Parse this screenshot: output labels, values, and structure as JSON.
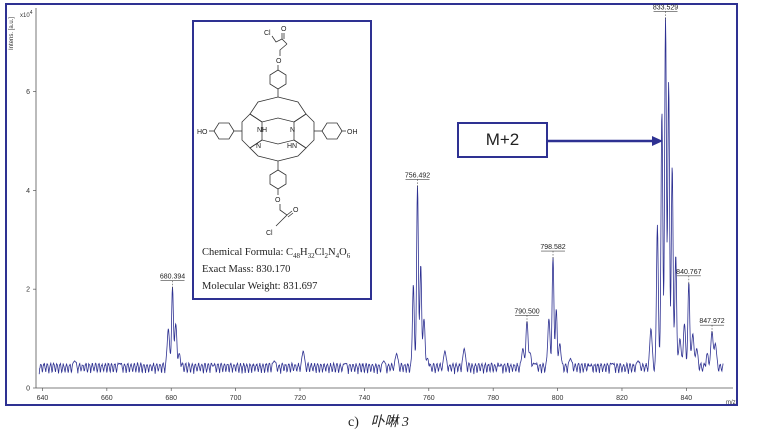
{
  "chart_data": {
    "type": "line",
    "xlabel": "m/z",
    "ylabel": "Intens. [a.u.]",
    "y_multiplier": "x10",
    "y_multiplier_exp": "4",
    "xlim": [
      638,
      852
    ],
    "ylim": [
      0,
      7.65
    ],
    "x_ticks": [
      640,
      660,
      680,
      700,
      720,
      740,
      760,
      780,
      800,
      820,
      840
    ],
    "y_ticks": [
      0,
      2,
      4,
      6
    ],
    "line_color": "#2e3192",
    "grid": false,
    "peaks": [
      {
        "mz": 680.394,
        "label": "680.394",
        "intensity": 2.05
      },
      {
        "mz": 756.492,
        "label": "756.492",
        "intensity": 4.1
      },
      {
        "mz": 790.5,
        "label": "790.500",
        "intensity": 1.35
      },
      {
        "mz": 798.582,
        "label": "798.582",
        "intensity": 2.65
      },
      {
        "mz": 833.529,
        "label": "833.529",
        "intensity": 7.5
      },
      {
        "mz": 840.767,
        "label": "840.767",
        "intensity": 2.15
      },
      {
        "mz": 847.972,
        "label": "847.972",
        "intensity": 1.15
      }
    ],
    "annotation": {
      "text": "M+2",
      "points_to_mz": 833.529
    }
  },
  "structure": {
    "atoms": {
      "cl": "Cl",
      "o": "O",
      "nh": "NH",
      "n": "N",
      "hn": "HN",
      "ho": "HO",
      "oh": "OH"
    },
    "formula_prefix": "Chemical Formula: ",
    "formula_parts": [
      {
        "t": "C",
        "sub": false
      },
      {
        "t": "48",
        "sub": true
      },
      {
        "t": "H",
        "sub": false
      },
      {
        "t": "32",
        "sub": true
      },
      {
        "t": "Cl",
        "sub": false
      },
      {
        "t": "2",
        "sub": true
      },
      {
        "t": "N",
        "sub": false
      },
      {
        "t": "4",
        "sub": true
      },
      {
        "t": "O",
        "sub": false
      },
      {
        "t": "6",
        "sub": true
      }
    ],
    "exact_mass": "Exact Mass: 830.170",
    "molecular_weight": "Molecular Weight: 831.697"
  },
  "caption": {
    "label": "c)",
    "name": "卟啉 3"
  }
}
